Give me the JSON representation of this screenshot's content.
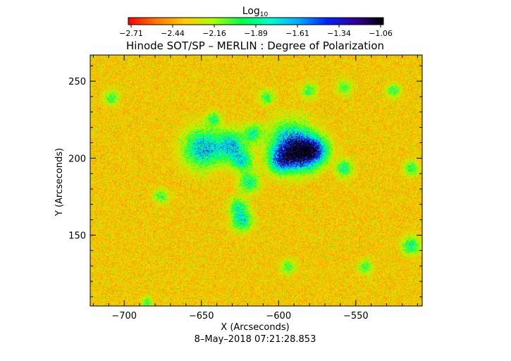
{
  "chart_data": {
    "type": "heatmap",
    "title": "Hinode SOT/SP – MERLIN : Degree of Polarization",
    "subtitle": "8–May–2018 07:21:28.853",
    "xlabel": "X (Arcseconds)",
    "ylabel": "Y (Arcseconds)",
    "xlim": [
      -722,
      -507
    ],
    "ylim": [
      104,
      267
    ],
    "x_ticks": [
      -700,
      -650,
      -600,
      -550
    ],
    "x_tick_labels": [
      "−700",
      "−650",
      "−600",
      "−550"
    ],
    "y_ticks": [
      150,
      200,
      250
    ],
    "y_tick_labels": [
      "150",
      "200",
      "250"
    ],
    "colorbar": {
      "label_base": "Log",
      "label_sub": "10",
      "range": [
        -2.8,
        -1.0
      ],
      "tick_labels": [
        "−2.71",
        "−2.44",
        "−2.16",
        "−1.89",
        "−1.61",
        "−1.34",
        "−1.06"
      ],
      "colors": [
        "#ff0000",
        "#ff7700",
        "#ffcc00",
        "#aaff00",
        "#00ff44",
        "#00ffcc",
        "#00aaff",
        "#0022ff",
        "#330099",
        "#000000"
      ]
    }
  }
}
